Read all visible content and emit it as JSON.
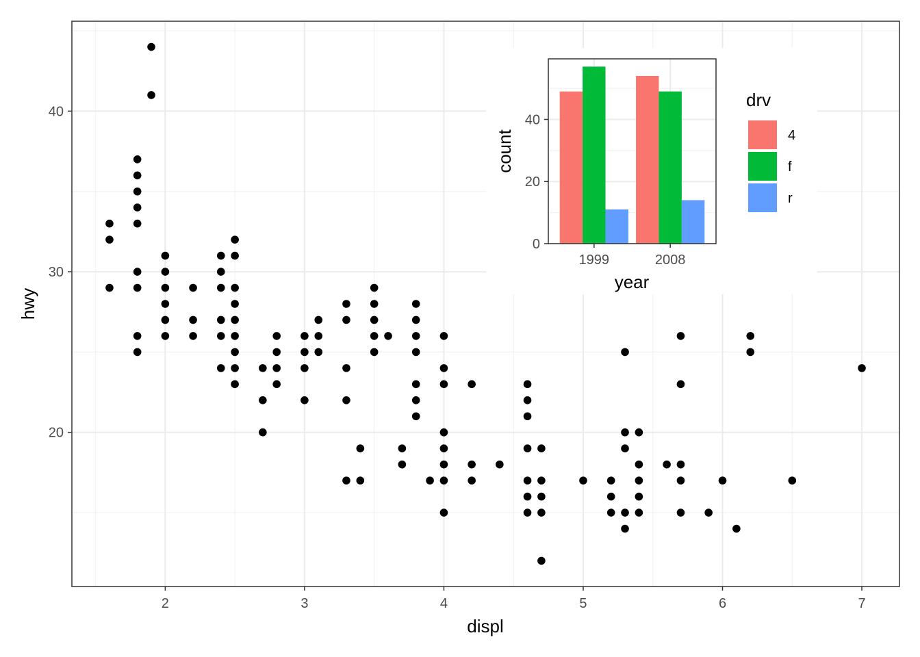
{
  "chart_data": [
    {
      "type": "scatter",
      "title": "",
      "xlabel": "displ",
      "ylabel": "hwy",
      "xlim": [
        1.33,
        7.27
      ],
      "ylim": [
        10.4,
        45.6
      ],
      "xticks": [
        2,
        3,
        4,
        5,
        6,
        7
      ],
      "xtick_labels": [
        "2",
        "3",
        "4",
        "5",
        "6",
        "7"
      ],
      "yticks": [
        20,
        30,
        40
      ],
      "ytick_labels": [
        "20",
        "30",
        "40"
      ],
      "grid": true,
      "point_color": "#000000",
      "points": [
        [
          1.6,
          33
        ],
        [
          1.6,
          32
        ],
        [
          1.6,
          29
        ],
        [
          1.8,
          37
        ],
        [
          1.8,
          36
        ],
        [
          1.8,
          35
        ],
        [
          1.8,
          34
        ],
        [
          1.8,
          33
        ],
        [
          1.8,
          30
        ],
        [
          1.8,
          29
        ],
        [
          1.8,
          26
        ],
        [
          1.8,
          25
        ],
        [
          1.9,
          44
        ],
        [
          1.9,
          41
        ],
        [
          2.0,
          31
        ],
        [
          2.0,
          30
        ],
        [
          2.0,
          29
        ],
        [
          2.0,
          28
        ],
        [
          2.0,
          27
        ],
        [
          2.0,
          26
        ],
        [
          2.2,
          29
        ],
        [
          2.2,
          27
        ],
        [
          2.2,
          26
        ],
        [
          2.4,
          31
        ],
        [
          2.4,
          30
        ],
        [
          2.4,
          29
        ],
        [
          2.4,
          27
        ],
        [
          2.4,
          26
        ],
        [
          2.4,
          24
        ],
        [
          2.5,
          32
        ],
        [
          2.5,
          31
        ],
        [
          2.5,
          29
        ],
        [
          2.5,
          28
        ],
        [
          2.5,
          27
        ],
        [
          2.5,
          26
        ],
        [
          2.5,
          25
        ],
        [
          2.5,
          24
        ],
        [
          2.5,
          23
        ],
        [
          2.7,
          24
        ],
        [
          2.7,
          22
        ],
        [
          2.7,
          20
        ],
        [
          2.8,
          26
        ],
        [
          2.8,
          25
        ],
        [
          2.8,
          24
        ],
        [
          2.8,
          23
        ],
        [
          3.0,
          26
        ],
        [
          3.0,
          25
        ],
        [
          3.0,
          24
        ],
        [
          3.0,
          22
        ],
        [
          3.1,
          27
        ],
        [
          3.1,
          26
        ],
        [
          3.1,
          25
        ],
        [
          3.3,
          28
        ],
        [
          3.3,
          27
        ],
        [
          3.3,
          24
        ],
        [
          3.3,
          22
        ],
        [
          3.3,
          17
        ],
        [
          3.4,
          19
        ],
        [
          3.4,
          17
        ],
        [
          3.5,
          29
        ],
        [
          3.5,
          28
        ],
        [
          3.5,
          27
        ],
        [
          3.5,
          26
        ],
        [
          3.5,
          25
        ],
        [
          3.6,
          26
        ],
        [
          3.7,
          19
        ],
        [
          3.7,
          18
        ],
        [
          3.8,
          28
        ],
        [
          3.8,
          27
        ],
        [
          3.8,
          26
        ],
        [
          3.8,
          25
        ],
        [
          3.8,
          23
        ],
        [
          3.8,
          22
        ],
        [
          3.8,
          21
        ],
        [
          3.9,
          17
        ],
        [
          4.0,
          26
        ],
        [
          4.0,
          24
        ],
        [
          4.0,
          23
        ],
        [
          4.0,
          20
        ],
        [
          4.0,
          19
        ],
        [
          4.0,
          18
        ],
        [
          4.0,
          17
        ],
        [
          4.0,
          15
        ],
        [
          4.2,
          23
        ],
        [
          4.2,
          18
        ],
        [
          4.2,
          17
        ],
        [
          4.4,
          18
        ],
        [
          4.6,
          23
        ],
        [
          4.6,
          22
        ],
        [
          4.6,
          21
        ],
        [
          4.6,
          19
        ],
        [
          4.6,
          17
        ],
        [
          4.6,
          16
        ],
        [
          4.6,
          15
        ],
        [
          4.7,
          19
        ],
        [
          4.7,
          17
        ],
        [
          4.7,
          16
        ],
        [
          4.7,
          15
        ],
        [
          4.7,
          12
        ],
        [
          5.0,
          17
        ],
        [
          5.2,
          17
        ],
        [
          5.2,
          16
        ],
        [
          5.2,
          15
        ],
        [
          5.3,
          25
        ],
        [
          5.3,
          20
        ],
        [
          5.3,
          19
        ],
        [
          5.3,
          15
        ],
        [
          5.3,
          14
        ],
        [
          5.4,
          20
        ],
        [
          5.4,
          18
        ],
        [
          5.4,
          17
        ],
        [
          5.4,
          16
        ],
        [
          5.4,
          15
        ],
        [
          5.6,
          18
        ],
        [
          5.7,
          26
        ],
        [
          5.7,
          23
        ],
        [
          5.7,
          18
        ],
        [
          5.7,
          17
        ],
        [
          5.7,
          15
        ],
        [
          5.9,
          15
        ],
        [
          6.0,
          17
        ],
        [
          6.1,
          14
        ],
        [
          6.2,
          26
        ],
        [
          6.2,
          25
        ],
        [
          6.5,
          17
        ],
        [
          7.0,
          24
        ]
      ]
    },
    {
      "type": "bar",
      "title": "",
      "xlabel": "year",
      "ylabel": "count",
      "categories": [
        "1999",
        "2008"
      ],
      "ylim": [
        0,
        59.5
      ],
      "yticks": [
        0,
        20,
        40
      ],
      "ytick_labels": [
        "0",
        "20",
        "40"
      ],
      "grid": true,
      "legend_title": "drv",
      "legend_position": "right",
      "series": [
        {
          "name": "4",
          "color": "#F8766D",
          "values": [
            49,
            54
          ]
        },
        {
          "name": "f",
          "color": "#00BA38",
          "values": [
            57,
            49
          ]
        },
        {
          "name": "r",
          "color": "#619CFF",
          "values": [
            11,
            14
          ]
        }
      ]
    }
  ]
}
